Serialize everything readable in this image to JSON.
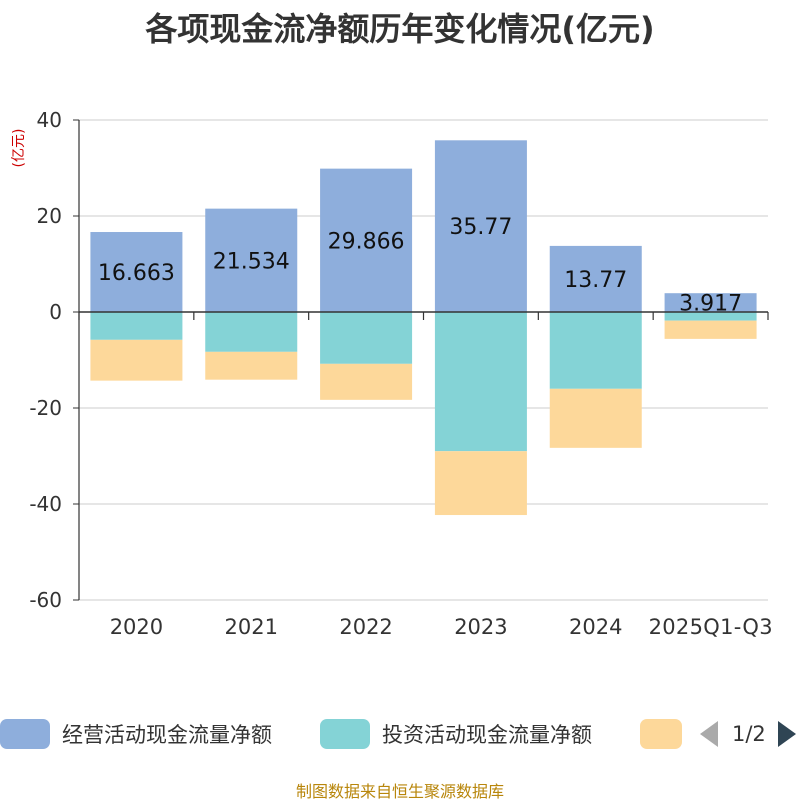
{
  "colors": {
    "operating": "#8eaedc",
    "investing": "#84d3d6",
    "financing": "#fdd89a",
    "axis": "#333333",
    "grid": "#cccccc",
    "source": "#b8860b",
    "unit": "#cc0000"
  },
  "legend": {
    "items": [
      "经营活动现金流量净额",
      "投资活动现金流量净额",
      ""
    ],
    "page": "1/2"
  },
  "source": "制图数据来自恒生聚源数据库",
  "chart_data": {
    "type": "bar",
    "stacked": true,
    "title": "各项现金流净额历年变化情况(亿元)",
    "ylabel": "(亿元)",
    "xlabel": "",
    "categories": [
      "2020",
      "2021",
      "2022",
      "2023",
      "2024",
      "2025Q1-Q3"
    ],
    "ylim": [
      -60,
      40
    ],
    "yticks": [
      40,
      20,
      0,
      -20,
      -40,
      -60
    ],
    "grid": true,
    "series": [
      {
        "name": "经营活动现金流量净额",
        "values": [
          16.663,
          21.534,
          29.866,
          35.77,
          13.77,
          3.917
        ],
        "labels": [
          "16.663",
          "21.534",
          "29.866",
          "35.77",
          "13.77",
          "3.917"
        ]
      },
      {
        "name": "投资活动现金流量净额",
        "values": [
          -5.8,
          -8.3,
          -10.8,
          -29.0,
          -16.0,
          -1.8
        ]
      },
      {
        "name": "",
        "values": [
          -8.5,
          -5.8,
          -7.5,
          -13.3,
          -12.3,
          -3.8
        ]
      }
    ]
  }
}
